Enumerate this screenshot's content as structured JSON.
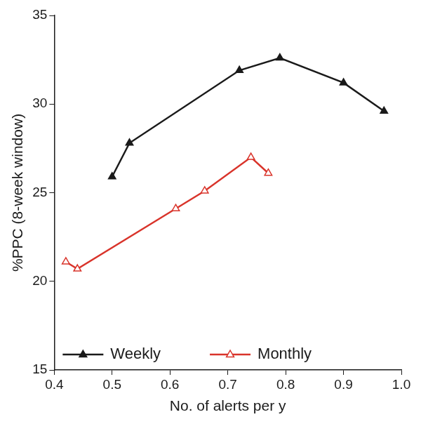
{
  "chart_data": {
    "type": "line",
    "x_label": "No. of alerts per y",
    "y_label": "%PPC (8-week window)",
    "xlim": [
      0.4,
      1.0
    ],
    "xticks": [
      0.4,
      0.5,
      0.6,
      0.7,
      0.8,
      0.9,
      {
        "value": 1,
        "label": "1.0"
      }
    ],
    "ylim": [
      15,
      35
    ],
    "yticks": [
      15,
      20,
      25,
      30,
      35
    ],
    "grid": false,
    "legend": "bottom",
    "series": [
      {
        "name": "Weekly",
        "color": "#1a1a1a",
        "marker": "triangle",
        "x": [
          0.5,
          0.53,
          0.72,
          0.79,
          0.9,
          0.97
        ],
        "values": [
          25.9,
          27.8,
          31.9,
          32.6,
          31.2,
          29.6
        ]
      },
      {
        "name": "Monthly",
        "color": "#d9342b",
        "marker": "triangle-open",
        "x": [
          0.42,
          0.44,
          0.61,
          0.66,
          0.74,
          0.77
        ],
        "values": [
          21.1,
          20.7,
          24.1,
          25.1,
          27.0,
          26.1
        ]
      }
    ]
  }
}
